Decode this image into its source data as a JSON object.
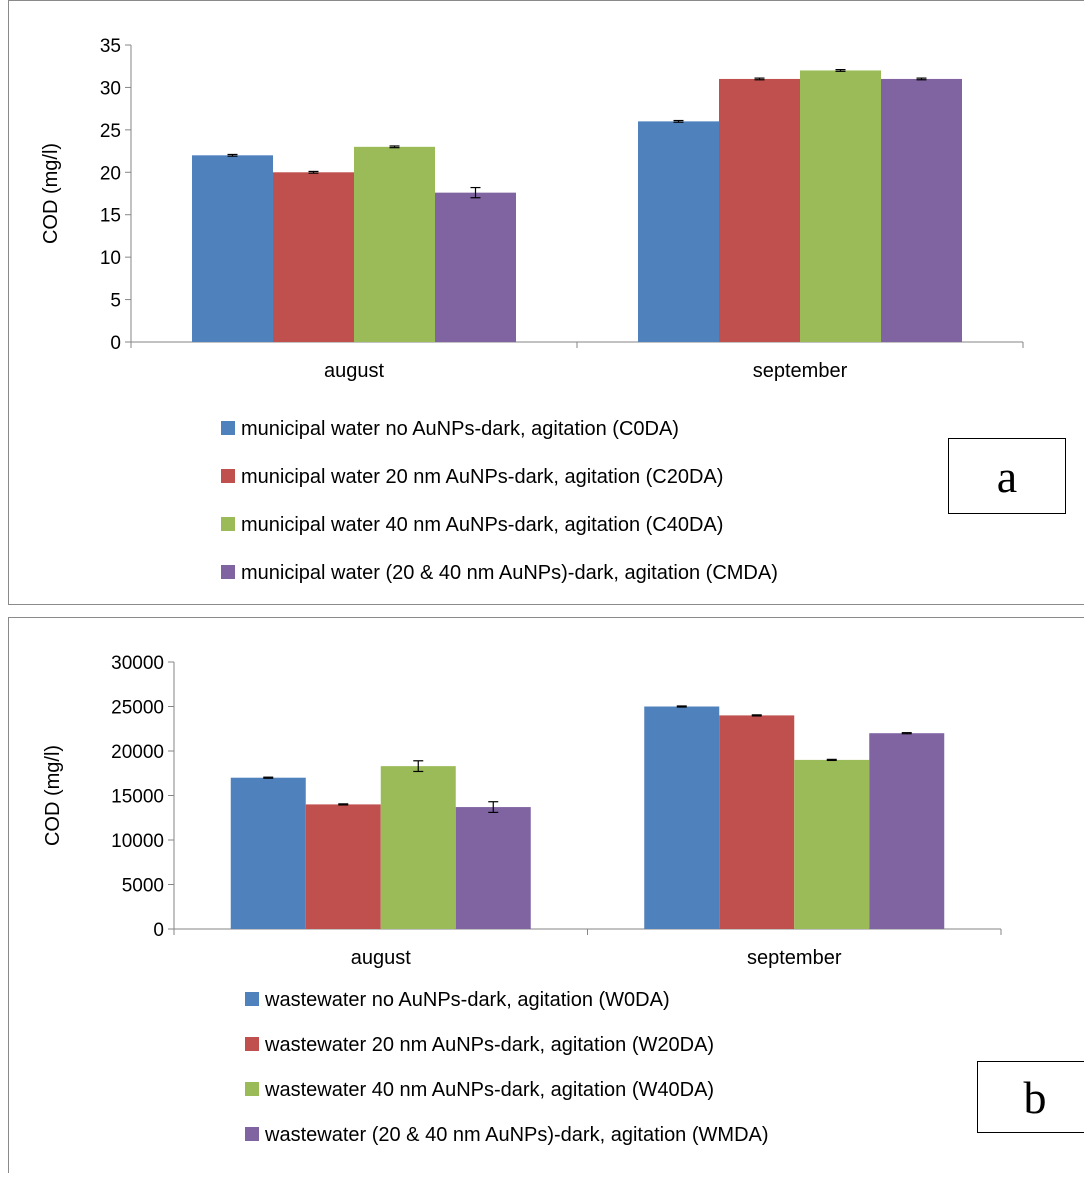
{
  "chart_data": [
    {
      "type": "bar",
      "panel_label": "a",
      "categories": [
        "august",
        "september"
      ],
      "ylabel": "COD (mg/l)",
      "ylim": [
        0,
        35
      ],
      "yticks": [
        0,
        5,
        10,
        15,
        20,
        25,
        30,
        35
      ],
      "series": [
        {
          "name": "municipal water no AuNPs-dark, agitation (C0DA)",
          "color": "#4F81BD",
          "values": [
            22,
            26
          ],
          "errors": [
            0.1,
            0.1
          ]
        },
        {
          "name": "municipal water 20 nm AuNPs-dark, agitation (C20DA)",
          "color": "#C0504D",
          "values": [
            20,
            31
          ],
          "errors": [
            0.1,
            0.1
          ]
        },
        {
          "name": "municipal water 40 nm AuNPs-dark, agitation (C40DA)",
          "color": "#9BBB59",
          "values": [
            23,
            32
          ],
          "errors": [
            0.1,
            0.1
          ]
        },
        {
          "name": "municipal water (20 & 40 nm AuNPs)-dark, agitation (CMDA)",
          "color": "#8064A2",
          "values": [
            17.6,
            31
          ],
          "errors": [
            0.6,
            0.1
          ]
        }
      ]
    },
    {
      "type": "bar",
      "panel_label": "b",
      "categories": [
        "august",
        "september"
      ],
      "ylabel": "COD (mg/l)",
      "ylim": [
        0,
        30000
      ],
      "yticks": [
        0,
        5000,
        10000,
        15000,
        20000,
        25000,
        30000
      ],
      "series": [
        {
          "name": "wastewater no AuNPs-dark, agitation (W0DA)",
          "color": "#4F81BD",
          "values": [
            17000,
            25000
          ],
          "errors": [
            60,
            60
          ]
        },
        {
          "name": "wastewater 20 nm AuNPs-dark, agitation (W20DA)",
          "color": "#C0504D",
          "values": [
            14000,
            24000
          ],
          "errors": [
            60,
            60
          ]
        },
        {
          "name": "wastewater 40 nm AuNPs-dark, agitation (W40DA)",
          "color": "#9BBB59",
          "values": [
            18300,
            19000
          ],
          "errors": [
            600,
            60
          ]
        },
        {
          "name": "wastewater (20 & 40 nm AuNPs)-dark, agitation (WMDA)",
          "color": "#8064A2",
          "values": [
            13700,
            22000
          ],
          "errors": [
            600,
            60
          ]
        }
      ]
    }
  ]
}
